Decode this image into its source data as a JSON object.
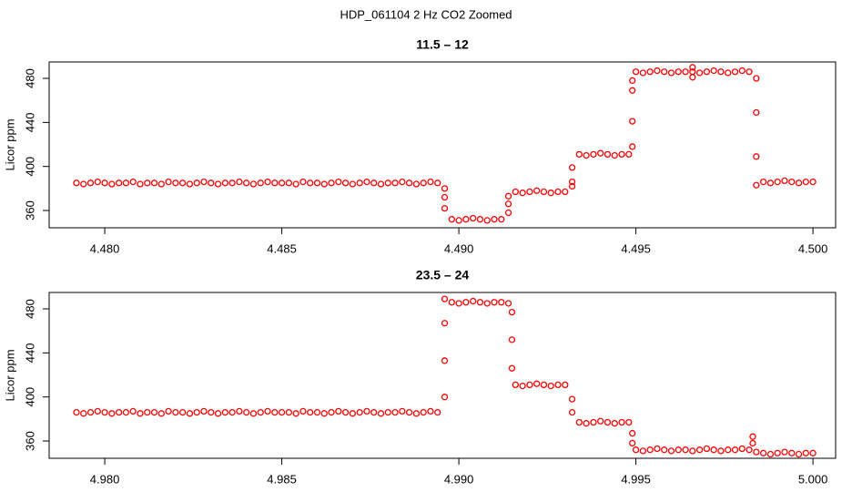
{
  "title": "HDP_061104  2 Hz CO2 Zoomed",
  "chart_data": [
    {
      "type": "scatter",
      "title": "11.5 – 12",
      "y_label": "Licor ppm",
      "xlim": [
        4.47843,
        4.50064
      ],
      "ylim": [
        344.3,
        494.9
      ],
      "xticks": [
        {
          "value": 4.48,
          "label": "4.480"
        },
        {
          "value": 4.485,
          "label": "4.485"
        },
        {
          "value": 4.49,
          "label": "4.490"
        },
        {
          "value": 4.495,
          "label": "4.495"
        },
        {
          "value": 4.5,
          "label": "4.500"
        }
      ],
      "yticks": [
        360,
        400,
        440,
        480
      ],
      "series": [
        {
          "color": "#ff0000",
          "x": [
            4.4792,
            4.4794,
            4.4796,
            4.4798,
            4.48,
            4.4802,
            4.4804,
            4.4806,
            4.4808,
            4.481,
            4.4812,
            4.4814,
            4.4816,
            4.4818,
            4.482,
            4.4822,
            4.4824,
            4.4826,
            4.4828,
            4.483,
            4.4832,
            4.4834,
            4.4836,
            4.4838,
            4.484,
            4.4842,
            4.4844,
            4.4846,
            4.4848,
            4.485,
            4.4852,
            4.4854,
            4.4856,
            4.4858,
            4.486,
            4.4862,
            4.4864,
            4.4866,
            4.4868,
            4.487,
            4.4872,
            4.4874,
            4.4876,
            4.4878,
            4.488,
            4.4882,
            4.4884,
            4.4886,
            4.4888,
            4.489,
            4.4892,
            4.4894,
            4.4896,
            4.4896,
            4.4896,
            4.4898,
            4.49,
            4.4902,
            4.4904,
            4.4906,
            4.4908,
            4.491,
            4.4912,
            4.4914,
            4.4914,
            4.4914,
            4.4916,
            4.4918,
            4.492,
            4.4922,
            4.4924,
            4.4926,
            4.4928,
            4.493,
            4.4932,
            4.4932,
            4.4932,
            4.4934,
            4.4936,
            4.4938,
            4.494,
            4.4942,
            4.4944,
            4.4946,
            4.4948,
            4.4949,
            4.4949,
            4.4949,
            4.4949,
            4.495,
            4.4952,
            4.4954,
            4.4956,
            4.4958,
            4.496,
            4.4962,
            4.4964,
            4.4966,
            4.4966,
            4.4966,
            4.4968,
            4.497,
            4.4972,
            4.4974,
            4.4976,
            4.4978,
            4.498,
            4.4982,
            4.4984,
            4.4984,
            4.4984,
            4.4984,
            4.4986,
            4.4988,
            4.499,
            4.4992,
            4.4994,
            4.4996,
            4.4998,
            4.5
          ],
          "values": [
            385,
            384,
            385,
            386,
            385,
            384,
            385,
            385,
            386,
            384,
            385,
            385,
            384,
            386,
            385,
            385,
            384,
            385,
            386,
            385,
            384,
            385,
            385,
            386,
            385,
            384,
            385,
            386,
            385,
            385,
            385,
            384,
            386,
            385,
            385,
            384,
            385,
            386,
            385,
            384,
            385,
            386,
            385,
            384,
            385,
            385,
            386,
            385,
            384,
            385,
            386,
            385,
            380,
            372,
            362,
            352,
            351,
            352,
            353,
            352,
            351,
            352,
            352,
            358,
            366,
            373,
            377,
            376,
            377,
            378,
            377,
            376,
            377,
            377,
            382,
            386,
            399,
            411,
            410,
            411,
            412,
            411,
            410,
            411,
            411,
            418,
            441,
            469,
            478,
            486,
            485,
            486,
            487,
            486,
            485,
            486,
            486,
            490,
            481,
            486,
            485,
            486,
            487,
            486,
            485,
            486,
            487,
            486,
            480,
            449,
            409,
            383,
            386,
            385,
            386,
            387,
            386,
            385,
            386,
            386
          ]
        }
      ]
    },
    {
      "type": "scatter",
      "title": "23.5 – 24",
      "y_label": "Licor ppm",
      "xlim": [
        4.97843,
        5.00064
      ],
      "ylim": [
        344.3,
        494.9
      ],
      "xticks": [
        {
          "value": 4.98,
          "label": "4.980"
        },
        {
          "value": 4.985,
          "label": "4.985"
        },
        {
          "value": 4.99,
          "label": "4.990"
        },
        {
          "value": 4.995,
          "label": "4.995"
        },
        {
          "value": 5.0,
          "label": "5.000"
        }
      ],
      "yticks": [
        360,
        400,
        440,
        480
      ],
      "series": [
        {
          "color": "#ff0000",
          "x": [
            4.9792,
            4.9794,
            4.9796,
            4.9798,
            4.98,
            4.9802,
            4.9804,
            4.9806,
            4.9808,
            4.981,
            4.9812,
            4.9814,
            4.9816,
            4.9818,
            4.982,
            4.9822,
            4.9824,
            4.9826,
            4.9828,
            4.983,
            4.9832,
            4.9834,
            4.9836,
            4.9838,
            4.984,
            4.9842,
            4.9844,
            4.9846,
            4.9848,
            4.985,
            4.9852,
            4.9854,
            4.9856,
            4.9858,
            4.986,
            4.9862,
            4.9864,
            4.9866,
            4.9868,
            4.987,
            4.9872,
            4.9874,
            4.9876,
            4.9878,
            4.988,
            4.9882,
            4.9884,
            4.9886,
            4.9888,
            4.989,
            4.9892,
            4.9894,
            4.9896,
            4.9896,
            4.9896,
            4.9896,
            4.9898,
            4.99,
            4.9902,
            4.9904,
            4.9906,
            4.9908,
            4.991,
            4.9912,
            4.9914,
            4.9915,
            4.9915,
            4.9915,
            4.9916,
            4.9918,
            4.992,
            4.9922,
            4.9924,
            4.9926,
            4.9928,
            4.993,
            4.9932,
            4.9932,
            4.9934,
            4.9936,
            4.9938,
            4.994,
            4.9942,
            4.9944,
            4.9946,
            4.9948,
            4.9949,
            4.9949,
            4.995,
            4.9952,
            4.9954,
            4.9956,
            4.9958,
            4.996,
            4.9962,
            4.9964,
            4.9966,
            4.9968,
            4.997,
            4.9972,
            4.9974,
            4.9976,
            4.9978,
            4.998,
            4.9982,
            4.9983,
            4.9983,
            4.9984,
            4.9986,
            4.9988,
            4.999,
            4.9992,
            4.9994,
            4.9996,
            4.9998,
            5.0
          ],
          "values": [
            386,
            385,
            386,
            387,
            386,
            385,
            386,
            386,
            387,
            385,
            386,
            386,
            385,
            387,
            386,
            386,
            385,
            386,
            387,
            386,
            385,
            386,
            386,
            387,
            386,
            385,
            386,
            387,
            386,
            386,
            386,
            385,
            387,
            386,
            386,
            385,
            386,
            387,
            386,
            385,
            386,
            387,
            386,
            385,
            386,
            386,
            387,
            386,
            385,
            386,
            387,
            386,
            400,
            433,
            467,
            489,
            486,
            485,
            486,
            487,
            486,
            485,
            486,
            486,
            485,
            477,
            452,
            426,
            411,
            410,
            411,
            412,
            411,
            410,
            411,
            411,
            398,
            386,
            377,
            376,
            377,
            378,
            377,
            376,
            377,
            377,
            367,
            358,
            352,
            351,
            352,
            353,
            352,
            351,
            352,
            352,
            351,
            352,
            353,
            352,
            351,
            352,
            352,
            353,
            352,
            364,
            358,
            350,
            349,
            348,
            349,
            350,
            349,
            348,
            349,
            349
          ]
        }
      ]
    }
  ]
}
